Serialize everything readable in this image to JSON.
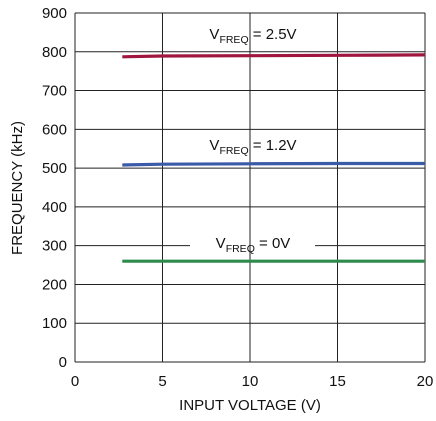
{
  "chart_data": {
    "type": "line",
    "title": "",
    "xlabel": "INPUT VOLTAGE (V)",
    "ylabel": "FREQUENCY (kHz)",
    "xlim": [
      0,
      20
    ],
    "ylim": [
      0,
      900
    ],
    "xticks": [
      0,
      5,
      10,
      15,
      20
    ],
    "yticks": [
      0,
      100,
      200,
      300,
      400,
      500,
      600,
      700,
      800,
      900
    ],
    "grid": true,
    "legend": "inline labels above each line",
    "series": [
      {
        "name_prefix": "V",
        "name_sub": "FREQ",
        "name_suffix": " = 2.5V",
        "color": "#a0163e",
        "x": [
          2.7,
          5,
          10,
          15,
          20
        ],
        "y": [
          787,
          789,
          790,
          791,
          792
        ]
      },
      {
        "name_prefix": "V",
        "name_sub": "FREQ",
        "name_suffix": " = 1.2V",
        "color": "#3a5ba8",
        "x": [
          2.7,
          5,
          10,
          15,
          20
        ],
        "y": [
          508,
          510,
          511,
          512,
          512
        ]
      },
      {
        "name_prefix": "V",
        "name_sub": "FREQ",
        "name_suffix": " = 0V",
        "color": "#2e8b4e",
        "x": [
          2.7,
          5,
          10,
          15,
          20
        ],
        "y": [
          260,
          260,
          260,
          260,
          260
        ]
      }
    ]
  }
}
